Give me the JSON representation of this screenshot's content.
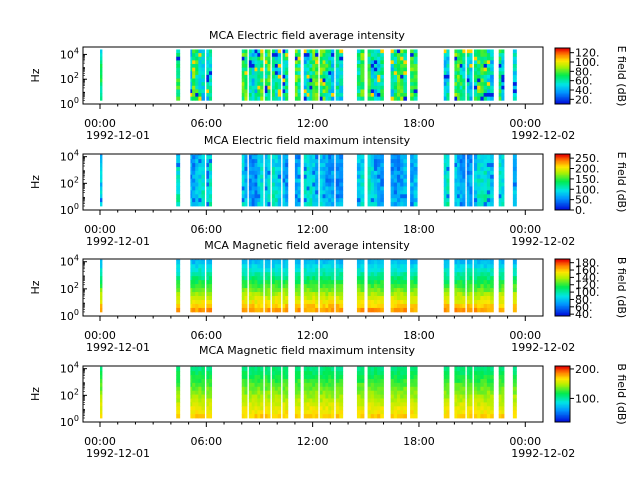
{
  "chart_data": [
    {
      "type": "heatmap",
      "title": "MCA  Electric field average intensity",
      "ylabel": "Hz",
      "yscale": "log",
      "ylim_exp": [
        0,
        4.6
      ],
      "ytick_labels": [
        {
          "base": "10",
          "exp": "0"
        },
        {
          "base": "10",
          "exp": "2"
        },
        {
          "base": "10",
          "exp": "4"
        }
      ],
      "colorbar_label": "E field (dB)",
      "colorbar_range": [
        10,
        130
      ],
      "colorbar_ticks": [
        "20.",
        "40.",
        "60.",
        "80.",
        "100.",
        "120."
      ],
      "colormap": "rainbow",
      "profile": "avg"
    },
    {
      "type": "heatmap",
      "title": "MCA  Electric field maximum intensity",
      "ylabel": "Hz",
      "yscale": "log",
      "ylim_exp": [
        0,
        4.2
      ],
      "ytick_labels": [
        {
          "base": "10",
          "exp": "0"
        },
        {
          "base": "10",
          "exp": "2"
        },
        {
          "base": "10",
          "exp": "4"
        }
      ],
      "colorbar_label": "E field (dB)",
      "colorbar_range": [
        0,
        270
      ],
      "colorbar_ticks": [
        "0.",
        "50.",
        "100.",
        "150.",
        "200.",
        "250."
      ],
      "colormap": "rainbow",
      "profile": "emax"
    },
    {
      "type": "heatmap",
      "title": "MCA  Magnetic field average intensity",
      "ylabel": "Hz",
      "yscale": "log",
      "ylim_exp": [
        0,
        4.2
      ],
      "ytick_labels": [
        {
          "base": "10",
          "exp": "0"
        },
        {
          "base": "10",
          "exp": "2"
        },
        {
          "base": "10",
          "exp": "4"
        }
      ],
      "colorbar_label": "B field (dB)",
      "colorbar_range": [
        35,
        190
      ],
      "colorbar_ticks": [
        "40.",
        "60.",
        "80.",
        "100.",
        "120.",
        "140.",
        "160.",
        "180."
      ],
      "colormap": "rainbow",
      "profile": "bavg"
    },
    {
      "type": "heatmap",
      "title": "MCA  Magnetic field maximum intensity",
      "ylabel": "Hz",
      "yscale": "log",
      "ylim_exp": [
        0,
        4.2
      ],
      "ytick_labels": [
        {
          "base": "10",
          "exp": "0"
        },
        {
          "base": "10",
          "exp": "2"
        },
        {
          "base": "10",
          "exp": "4"
        }
      ],
      "colorbar_label": "B field (dB)",
      "colorbar_range": [
        20,
        210
      ],
      "colorbar_ticks": [
        "100.",
        "200."
      ],
      "colormap": "rainbow",
      "profile": "bmax"
    }
  ],
  "x_axis": {
    "start": "1992-12-01 00:00",
    "end": "1992-12-02 00:00",
    "major_tick_labels": [
      "00:00",
      "06:00",
      "12:00",
      "18:00",
      "00:00"
    ],
    "date_labels": [
      "1992-12-01",
      "1992-12-02"
    ]
  },
  "data_segments_hours": [
    [
      0.0,
      0.1
    ],
    [
      4.3,
      4.5
    ],
    [
      5.1,
      5.15
    ],
    [
      5.2,
      5.9
    ],
    [
      6.0,
      6.3
    ],
    [
      8.0,
      8.3
    ],
    [
      8.4,
      9.2
    ],
    [
      9.3,
      9.6
    ],
    [
      9.7,
      10.2
    ],
    [
      10.3,
      10.6
    ],
    [
      11.0,
      11.3
    ],
    [
      11.5,
      12.3
    ],
    [
      12.4,
      13.2
    ],
    [
      13.3,
      13.7
    ],
    [
      14.5,
      14.9
    ],
    [
      15.1,
      16.0
    ],
    [
      16.4,
      17.3
    ],
    [
      17.5,
      17.9
    ],
    [
      19.4,
      19.7
    ],
    [
      20.0,
      20.6
    ],
    [
      20.7,
      21.0
    ],
    [
      21.1,
      22.2
    ],
    [
      22.5,
      22.8
    ],
    [
      23.3,
      23.5
    ]
  ]
}
